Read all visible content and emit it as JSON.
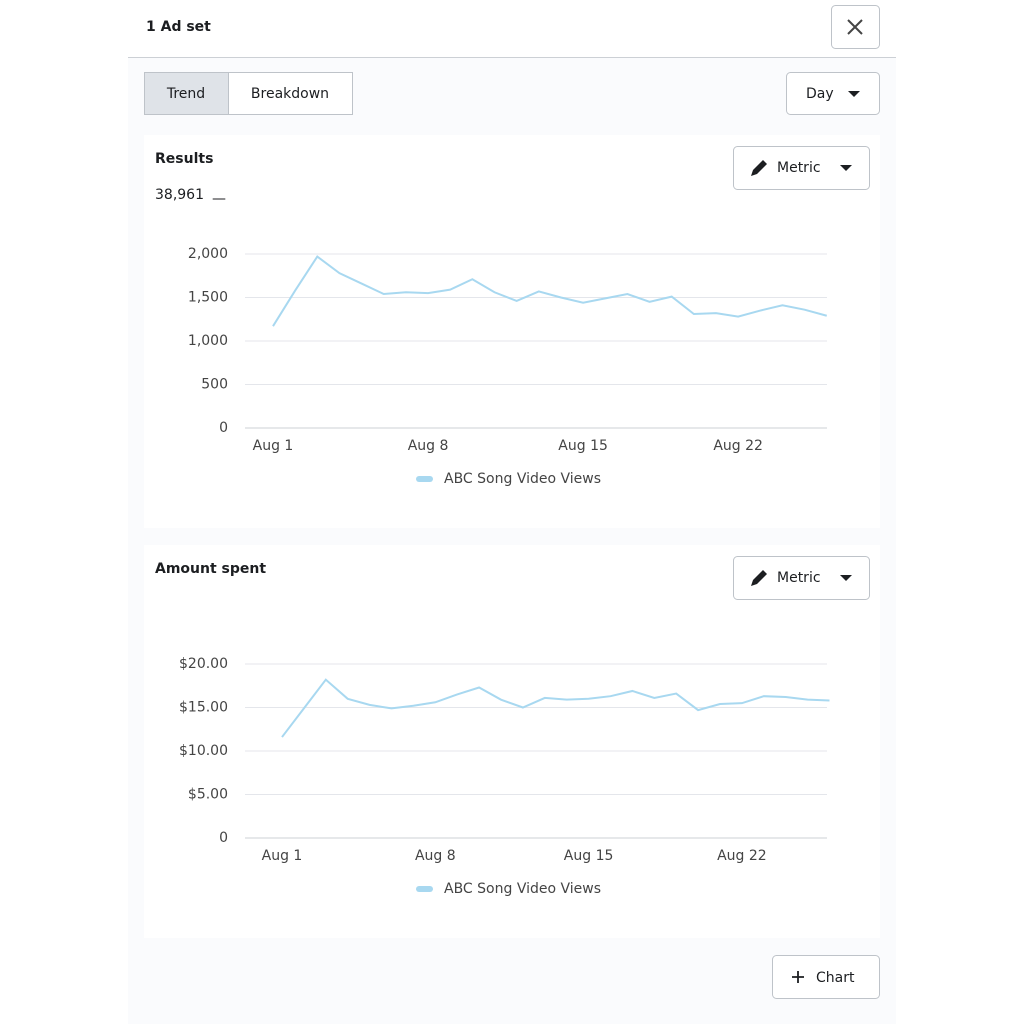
{
  "header": {
    "title": "1 Ad set"
  },
  "tabs": [
    {
      "label": "Trend",
      "active": true
    },
    {
      "label": "Breakdown",
      "active": false
    }
  ],
  "period_selector": "Day",
  "chart_data": [
    {
      "type": "line",
      "title": "Results",
      "total": "38,961",
      "total_marker": "—",
      "metric_button": "Metric",
      "categories": [
        "Aug 1",
        null,
        null,
        null,
        null,
        null,
        null,
        "Aug 8",
        null,
        null,
        null,
        null,
        null,
        null,
        "Aug 15",
        null,
        null,
        null,
        null,
        null,
        null,
        "Aug 22",
        null,
        null,
        null,
        null
      ],
      "series": [
        {
          "name": "ABC Song Video Views",
          "color": "#a8d8f0",
          "values": [
            1170,
            1580,
            1970,
            1780,
            1660,
            1540,
            1560,
            1550,
            1590,
            1710,
            1560,
            1460,
            1570,
            1500,
            1440,
            1490,
            1540,
            1450,
            1510,
            1310,
            1320,
            1280,
            1350,
            1410,
            1360,
            1290
          ]
        }
      ],
      "ylim": [
        0,
        2000
      ],
      "yticks": [
        0,
        500,
        {
          "value": 1000,
          "label": "1,000"
        },
        {
          "value": 1500,
          "label": "1,500"
        },
        {
          "value": 2000,
          "label": "2,000"
        }
      ],
      "grid": true
    },
    {
      "type": "line",
      "title": "Amount spent",
      "metric_button": "Metric",
      "categories": [
        "Aug 1",
        null,
        null,
        null,
        null,
        null,
        null,
        "Aug 8",
        null,
        null,
        null,
        null,
        null,
        null,
        "Aug 15",
        null,
        null,
        null,
        null,
        null,
        null,
        "Aug 22",
        null,
        null,
        null,
        null
      ],
      "series": [
        {
          "name": "ABC Song Video Views",
          "color": "#a8d8f0",
          "values": [
            11.6,
            14.9,
            18.2,
            16.0,
            15.3,
            14.9,
            15.2,
            15.6,
            16.5,
            17.3,
            15.9,
            15.0,
            16.1,
            15.9,
            16.0,
            16.3,
            16.9,
            16.1,
            16.6,
            14.7,
            15.4,
            15.5,
            16.3,
            16.2,
            15.9,
            15.8
          ]
        }
      ],
      "ylim": [
        0,
        20
      ],
      "yticks": [
        0,
        {
          "value": 5,
          "label": "$5.00"
        },
        {
          "value": 10,
          "label": "$10.00"
        },
        {
          "value": 15,
          "label": "$15.00"
        },
        {
          "value": 20,
          "label": "$20.00"
        }
      ],
      "grid": true
    }
  ],
  "add_chart_button": "Chart"
}
